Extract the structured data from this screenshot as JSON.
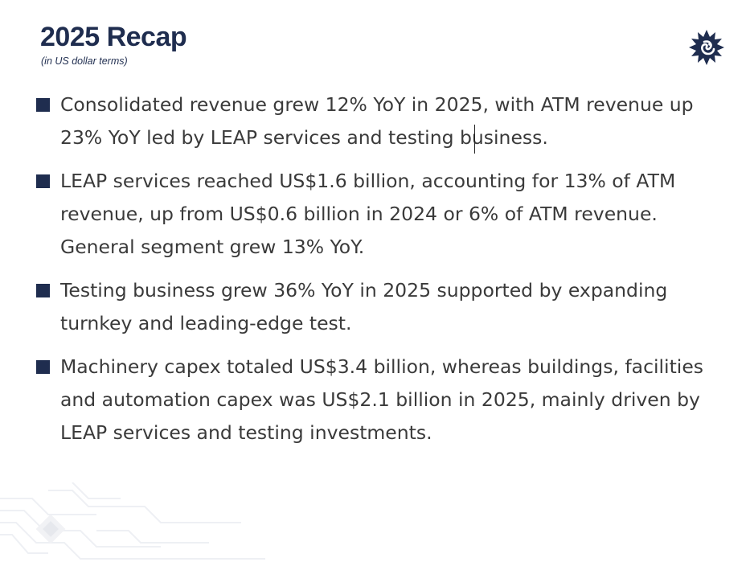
{
  "slide": {
    "title": "2025 Recap",
    "subtitle": "(in US dollar terms)",
    "logo_icon": "sunburst-logo-icon",
    "accent_color": "#1f2d4f",
    "text_color": "#3a3a3a",
    "bullets": [
      {
        "text": "Consolidated revenue grew 12% YoY in 2025, with ATM revenue up 23% YoY led by LEAP services and testing business."
      },
      {
        "text": "LEAP services reached US$1.6 billion, accounting for 13% of ATM revenue, up from US$0.6 billion in 2024 or 6% of ATM revenue. General segment grew 13% YoY."
      },
      {
        "text": "Testing business grew 36% YoY in 2025 supported by expanding turnkey and leading-edge test."
      },
      {
        "text": "Machinery capex totaled US$3.4 billion, whereas buildings, facilities and automation capex was US$2.1 billion in 2025, mainly driven by LEAP services and testing investments."
      }
    ]
  }
}
